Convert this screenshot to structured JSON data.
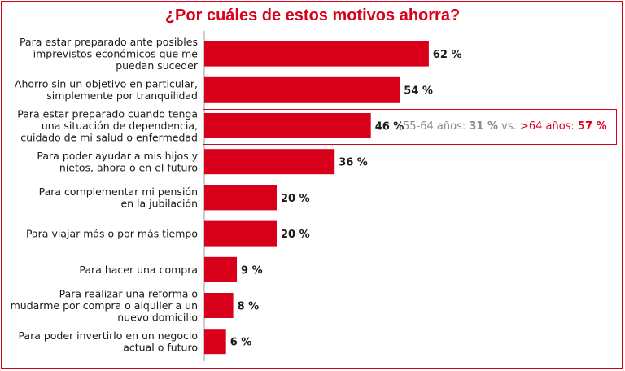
{
  "title": "¿Por cuáles de estos motivos ahorra?",
  "colors": {
    "bar": "#d9001b",
    "accent": "#d9001b",
    "text": "#1a1a1a",
    "muted": "#8a8a8a"
  },
  "chart_data": {
    "type": "bar",
    "orientation": "horizontal",
    "title": "¿Por cuáles de estos motivos ahorra?",
    "categories": [
      [
        "Para estar preparado ante posibles",
        "imprevistos económicos que me",
        "puedan suceder"
      ],
      [
        "Ahorro sin un objetivo en particular,",
        "simplemente por tranquilidad"
      ],
      [
        "Para estar preparado cuando tenga",
        "una situación de dependencia,",
        "cuidado de mi salud o enfermedad"
      ],
      [
        "Para poder ayudar a mis hijos y",
        "nietos, ahora o en el futuro"
      ],
      [
        "Para complementar mi pensión",
        "en la jubilación"
      ],
      [
        "Para viajar más o por más tiempo"
      ],
      [
        "Para hacer una compra"
      ],
      [
        "Para realizar una reforma o",
        "mudarme por compra o alquiler a un",
        "nuevo domicilio"
      ],
      [
        "Para poder invertirlo en un negocio",
        "actual o futuro"
      ]
    ],
    "values": [
      62,
      54,
      46,
      36,
      20,
      20,
      9,
      8,
      6
    ],
    "value_labels": [
      "62 %",
      "54 %",
      "46 %",
      "36 %",
      "20 %",
      "20 %",
      "9 %",
      "8 %",
      "6 %"
    ],
    "xlim": [
      0,
      100
    ],
    "grid": false,
    "annotation": {
      "category_index": 2,
      "group1_label": "55-64 años:",
      "group1_value": "31 %",
      "separator": "vs.",
      "group2_label": ">64 años:",
      "group2_value": "57 %"
    }
  }
}
